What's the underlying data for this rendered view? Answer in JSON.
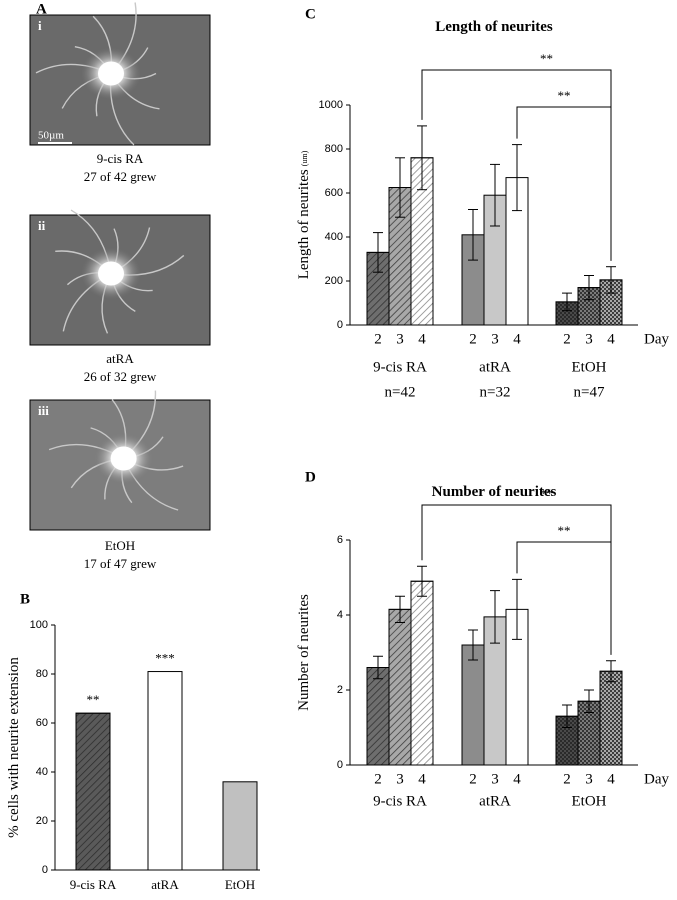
{
  "panel_a": {
    "letter": "A",
    "scale_bar": "50µm",
    "images": [
      {
        "label": "i",
        "treatment": "9-cis RA",
        "result": "27 of 42 grew"
      },
      {
        "label": "ii",
        "treatment": "atRA",
        "result": "26 of 32 grew"
      },
      {
        "label": "iii",
        "treatment": "EtOH",
        "result": "17 of 47 grew"
      }
    ]
  },
  "chart_data": [
    {
      "type": "bar",
      "letter": "B",
      "ylabel": "% cells with neurite extension",
      "categories": [
        "9-cis RA",
        "atRA",
        "EtOH"
      ],
      "values": [
        64,
        81,
        36
      ],
      "colors": [
        "#5a5a5a",
        "#ffffff",
        "#c0c0c0"
      ],
      "patterns": [
        "hatch",
        null,
        null
      ],
      "significance": [
        "**",
        "***",
        null
      ],
      "ylim": [
        0,
        100
      ],
      "yticks": [
        0,
        20,
        40,
        60,
        80,
        100
      ],
      "grid": false
    },
    {
      "type": "grouped_bar",
      "letter": "C",
      "title": "Length of neurites",
      "ylabel": "Length of neurites",
      "ylabel_unit": "(um)",
      "x_unit_label": "Day",
      "groups": [
        {
          "name": "9-cis RA",
          "n_label": "n=42",
          "days": [
            2,
            3,
            4
          ],
          "values": [
            330,
            625,
            760
          ],
          "errors": [
            90,
            135,
            145
          ],
          "colors": [
            "#6e6e6e",
            "#a8a8a8",
            "#ffffff"
          ],
          "pattern": "hatch"
        },
        {
          "name": "atRA",
          "n_label": "n=32",
          "days": [
            2,
            3,
            4
          ],
          "values": [
            410,
            590,
            670
          ],
          "errors": [
            115,
            140,
            150
          ],
          "colors": [
            "#8c8c8c",
            "#c8c8c8",
            "#ffffff"
          ],
          "pattern": null
        },
        {
          "name": "EtOH",
          "n_label": "n=47",
          "days": [
            2,
            3,
            4
          ],
          "values": [
            105,
            170,
            205
          ],
          "errors": [
            40,
            55,
            60
          ],
          "colors": [
            "#4a4a4a",
            "#7a7a7a",
            "#a8a8a8"
          ],
          "pattern": "check"
        }
      ],
      "significance_labels": [
        "**",
        "**"
      ],
      "ylim": [
        0,
        1000
      ],
      "yticks": [
        0,
        200,
        400,
        600,
        800,
        1000
      ],
      "grid": false
    },
    {
      "type": "grouped_bar",
      "letter": "D",
      "title": "Number of neurites",
      "ylabel": "Number of neurites",
      "x_unit_label": "Day",
      "groups": [
        {
          "name": "9-cis RA",
          "days": [
            2,
            3,
            4
          ],
          "values": [
            2.6,
            4.15,
            4.9
          ],
          "errors": [
            0.3,
            0.35,
            0.4
          ],
          "colors": [
            "#6e6e6e",
            "#a8a8a8",
            "#ffffff"
          ],
          "pattern": "hatch"
        },
        {
          "name": "atRA",
          "days": [
            2,
            3,
            4
          ],
          "values": [
            3.2,
            3.95,
            4.15
          ],
          "errors": [
            0.4,
            0.7,
            0.8
          ],
          "colors": [
            "#8c8c8c",
            "#c8c8c8",
            "#ffffff"
          ],
          "pattern": null
        },
        {
          "name": "EtOH",
          "days": [
            2,
            3,
            4
          ],
          "values": [
            1.3,
            1.7,
            2.5
          ],
          "errors": [
            0.3,
            0.3,
            0.28
          ],
          "colors": [
            "#4a4a4a",
            "#7a7a7a",
            "#a8a8a8"
          ],
          "pattern": "check"
        }
      ],
      "significance_labels": [
        "**",
        "**"
      ],
      "ylim": [
        0,
        6
      ],
      "yticks": [
        0,
        2,
        4,
        6
      ],
      "grid": false
    }
  ]
}
